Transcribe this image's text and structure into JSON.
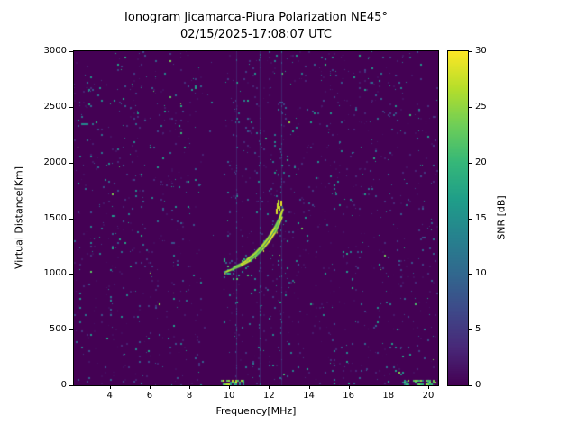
{
  "chart_data": {
    "type": "heatmap",
    "title": "Ionogram Jicamarca-Piura Polarization NE45°",
    "subtitle": "02/15/2025-17:08:07 UTC",
    "xlabel": "Frequency[MHz]",
    "ylabel": "Virtual Distance[Km]",
    "xlim": [
      2.2,
      20.5
    ],
    "ylim": [
      0,
      3000
    ],
    "xticks": [
      4,
      6,
      8,
      10,
      12,
      14,
      16,
      18,
      20
    ],
    "yticks": [
      0,
      500,
      1000,
      1500,
      2000,
      2500,
      3000
    ],
    "colorbar": {
      "label": "SNR [dB]",
      "min": 0,
      "max": 30,
      "ticks": [
        0,
        5,
        10,
        15,
        20,
        25,
        30
      ]
    },
    "colormap": {
      "name": "viridis",
      "stops": [
        "#440154",
        "#482878",
        "#3e4989",
        "#31688e",
        "#26828e",
        "#1f9e89",
        "#35b779",
        "#6ece58",
        "#b5de2b",
        "#fde725"
      ]
    },
    "background_value": 0,
    "noise": {
      "seed": 42,
      "density": 0.045,
      "value_min": 1,
      "value_max": 18
    },
    "quiet_bands": [
      {
        "f0": 8.55,
        "f1": 9.65,
        "density_scale": 0.12
      }
    ],
    "stripes": [
      {
        "freq": 10.35,
        "value": 5
      },
      {
        "freq": 11.55,
        "value": 6
      },
      {
        "freq": 12.62,
        "value": 6
      }
    ],
    "cluster": {
      "f0": 9.7,
      "f1": 11.3,
      "km0": 950,
      "km1": 1160,
      "density": 0.1,
      "vmin": 8,
      "vmax": 22
    },
    "bottom_echoes": [
      {
        "f0": 9.6,
        "f1": 10.7,
        "km0": 0,
        "km1": 45,
        "value": 22
      },
      {
        "f0": 18.7,
        "f1": 20.4,
        "km0": 0,
        "km1": 45,
        "value": 20
      }
    ],
    "extra_dashes": [
      {
        "f": 2.55,
        "km": 2350,
        "w": 8,
        "value": 14
      }
    ],
    "trace": {
      "value": 28,
      "branches": [
        [
          [
            9.85,
            1020
          ],
          [
            10.2,
            1045
          ],
          [
            10.6,
            1075
          ],
          [
            11.0,
            1115
          ],
          [
            11.35,
            1165
          ],
          [
            11.7,
            1225
          ],
          [
            12.0,
            1290
          ],
          [
            12.3,
            1370
          ],
          [
            12.5,
            1445
          ],
          [
            12.65,
            1510
          ]
        ],
        [
          [
            10.25,
            1060
          ],
          [
            10.6,
            1090
          ],
          [
            11.0,
            1135
          ],
          [
            11.35,
            1190
          ],
          [
            11.7,
            1255
          ],
          [
            12.0,
            1325
          ],
          [
            12.3,
            1405
          ],
          [
            12.5,
            1480
          ],
          [
            12.62,
            1545
          ]
        ],
        [
          [
            10.9,
            1130
          ],
          [
            11.3,
            1185
          ],
          [
            11.65,
            1250
          ],
          [
            12.0,
            1330
          ],
          [
            12.3,
            1420
          ],
          [
            12.55,
            1505
          ],
          [
            12.7,
            1580
          ]
        ]
      ],
      "dashes": [
        [
          12.4,
          1560
        ],
        [
          12.42,
          1610
        ],
        [
          12.5,
          1645
        ],
        [
          12.55,
          1585
        ],
        [
          12.6,
          1630
        ]
      ]
    }
  }
}
